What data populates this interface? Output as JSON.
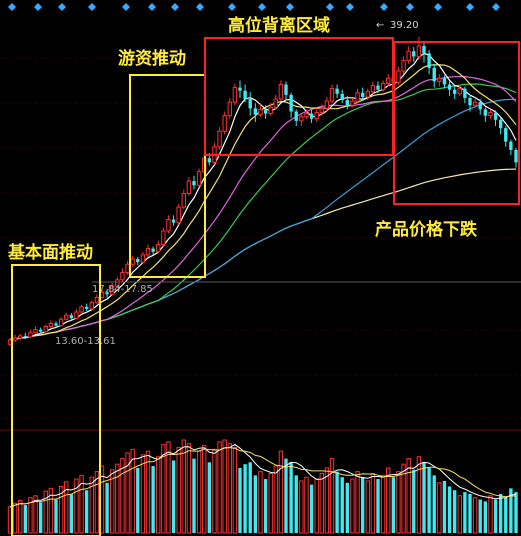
{
  "chart_data": {
    "type": "candlestick",
    "annotations": {
      "fundamental_push": "基本面推动",
      "hot_money_push": "游资推动",
      "high_divergence_zone": "高位背离区域",
      "product_price_drop": "产品价格下跌"
    },
    "price_labels": {
      "peak": "39.20",
      "level_upper": "17.84-17.85",
      "level_lower": "13.60-13.61"
    },
    "price_range": [
      5,
      41
    ],
    "colors": {
      "up": "#ff3030",
      "down": "#40e8f0",
      "ma5": "#ffffff",
      "ma10": "#f2e26a",
      "ma20": "#e066e0",
      "ma30": "#33cc55",
      "ma60": "#3aa0dc",
      "ma120": "#f5e8b0",
      "highlight_yellow": "#ffeb3b",
      "highlight_red": "#ff2020"
    },
    "candles": [
      [
        9.6,
        10.0,
        9.4,
        10.2
      ],
      [
        10.0,
        10.2,
        9.8,
        10.5
      ],
      [
        10.2,
        10.4,
        10.0,
        10.6
      ],
      [
        10.4,
        10.3,
        10.1,
        10.7
      ],
      [
        10.3,
        10.7,
        10.2,
        11.0
      ],
      [
        10.7,
        11.0,
        10.6,
        11.3
      ],
      [
        11.0,
        10.8,
        10.6,
        11.2
      ],
      [
        10.8,
        11.3,
        10.7,
        11.5
      ],
      [
        11.3,
        11.6,
        11.1,
        11.9
      ],
      [
        11.6,
        11.4,
        11.2,
        11.8
      ],
      [
        11.4,
        12.0,
        11.3,
        12.2
      ],
      [
        12.0,
        12.4,
        11.9,
        12.6
      ],
      [
        12.4,
        12.1,
        11.9,
        12.6
      ],
      [
        12.1,
        12.7,
        12.0,
        13.0
      ],
      [
        12.7,
        13.2,
        12.6,
        13.4
      ],
      [
        13.2,
        13.0,
        12.8,
        13.5
      ],
      [
        13.0,
        13.6,
        12.9,
        13.8
      ],
      [
        13.6,
        14.1,
        13.5,
        14.4
      ],
      [
        14.1,
        14.6,
        14.0,
        14.9
      ],
      [
        14.6,
        14.4,
        14.1,
        14.9
      ],
      [
        14.4,
        15.2,
        14.3,
        15.5
      ],
      [
        15.2,
        15.8,
        15.0,
        16.1
      ],
      [
        15.8,
        16.5,
        15.6,
        16.9
      ],
      [
        16.5,
        17.3,
        16.3,
        17.6
      ],
      [
        17.3,
        17.8,
        17.0,
        18.1
      ],
      [
        17.8,
        17.5,
        17.2,
        18.0
      ],
      [
        17.5,
        18.2,
        17.4,
        18.5
      ],
      [
        18.2,
        18.8,
        18.0,
        19.2
      ],
      [
        18.8,
        18.5,
        18.2,
        19.0
      ],
      [
        18.5,
        19.2,
        18.4,
        19.6
      ],
      [
        19.2,
        20.5,
        19.0,
        20.8
      ],
      [
        20.5,
        21.6,
        20.3,
        22.0
      ],
      [
        21.6,
        21.3,
        21.0,
        22.0
      ],
      [
        21.3,
        22.8,
        21.1,
        23.1
      ],
      [
        22.8,
        24.1,
        22.6,
        24.5
      ],
      [
        24.1,
        25.3,
        23.9,
        25.7
      ],
      [
        25.3,
        24.9,
        24.5,
        25.8
      ],
      [
        24.9,
        26.2,
        24.7,
        26.5
      ],
      [
        26.2,
        27.5,
        26.0,
        27.9
      ],
      [
        27.5,
        27.1,
        26.8,
        28.0
      ],
      [
        27.1,
        28.6,
        26.9,
        29.0
      ],
      [
        28.6,
        30.1,
        28.3,
        30.5
      ],
      [
        30.1,
        31.6,
        29.8,
        32.0
      ],
      [
        31.6,
        32.9,
        31.3,
        33.3
      ],
      [
        32.9,
        34.3,
        32.6,
        34.7
      ],
      [
        34.3,
        34.0,
        33.3,
        35.0
      ],
      [
        34.0,
        33.2,
        32.9,
        34.6
      ],
      [
        33.2,
        32.3,
        31.6,
        33.9
      ],
      [
        32.3,
        31.7,
        31.0,
        32.8
      ],
      [
        31.7,
        32.2,
        31.5,
        32.7
      ],
      [
        32.2,
        31.8,
        31.3,
        32.6
      ],
      [
        31.8,
        32.4,
        31.6,
        32.8
      ],
      [
        32.4,
        33.2,
        32.2,
        33.6
      ],
      [
        33.2,
        34.6,
        33.0,
        35.0
      ],
      [
        34.6,
        33.6,
        33.1,
        34.9
      ],
      [
        33.6,
        32.0,
        31.4,
        33.8
      ],
      [
        32.0,
        31.1,
        30.6,
        32.2
      ],
      [
        31.1,
        31.5,
        30.6,
        31.8
      ],
      [
        31.5,
        31.8,
        31.3,
        32.2
      ],
      [
        31.8,
        31.3,
        30.9,
        32.2
      ],
      [
        31.3,
        31.9,
        31.0,
        32.4
      ],
      [
        31.9,
        32.3,
        31.6,
        32.7
      ],
      [
        32.3,
        33.0,
        32.0,
        33.4
      ],
      [
        33.0,
        34.2,
        32.8,
        34.6
      ],
      [
        34.2,
        33.7,
        33.3,
        34.6
      ],
      [
        33.7,
        33.1,
        32.8,
        34.1
      ],
      [
        33.1,
        32.6,
        32.2,
        33.5
      ],
      [
        32.6,
        33.0,
        32.4,
        33.3
      ],
      [
        33.0,
        33.8,
        32.8,
        34.2
      ],
      [
        33.8,
        33.4,
        33.0,
        34.3
      ],
      [
        33.4,
        33.9,
        33.1,
        34.2
      ],
      [
        33.9,
        34.5,
        33.7,
        34.9
      ],
      [
        34.5,
        34.1,
        33.8,
        34.9
      ],
      [
        34.1,
        34.7,
        33.9,
        35.0
      ],
      [
        34.7,
        35.2,
        34.4,
        35.6
      ],
      [
        35.2,
        34.8,
        34.4,
        35.6
      ],
      [
        34.8,
        35.9,
        34.6,
        36.3
      ],
      [
        35.9,
        36.9,
        35.6,
        37.3
      ],
      [
        36.9,
        37.8,
        36.6,
        38.3
      ],
      [
        37.8,
        37.3,
        36.8,
        38.2
      ],
      [
        37.3,
        38.3,
        37.0,
        39.2
      ],
      [
        38.3,
        37.6,
        36.7,
        38.7
      ],
      [
        37.6,
        36.2,
        35.6,
        37.9
      ],
      [
        36.2,
        34.9,
        34.3,
        36.6
      ],
      [
        34.9,
        35.2,
        34.4,
        35.6
      ],
      [
        35.2,
        34.6,
        34.2,
        35.5
      ],
      [
        34.6,
        34.1,
        33.5,
        34.9
      ],
      [
        34.1,
        33.7,
        33.2,
        34.4
      ],
      [
        33.7,
        34.2,
        33.5,
        34.6
      ],
      [
        34.2,
        33.3,
        32.8,
        34.4
      ],
      [
        33.3,
        32.6,
        32.0,
        33.6
      ],
      [
        32.6,
        32.9,
        32.3,
        33.2
      ],
      [
        32.9,
        32.2,
        31.7,
        33.2
      ],
      [
        32.2,
        31.6,
        31.0,
        32.4
      ],
      [
        31.6,
        31.9,
        31.3,
        32.2
      ],
      [
        31.9,
        31.2,
        30.6,
        32.1
      ],
      [
        31.2,
        30.4,
        29.8,
        31.4
      ],
      [
        30.4,
        29.1,
        28.6,
        30.6
      ],
      [
        29.1,
        28.3,
        27.8,
        29.3
      ],
      [
        28.3,
        27.1,
        26.6,
        28.5
      ]
    ],
    "volume": [
      28,
      32,
      35,
      30,
      38,
      40,
      33,
      45,
      48,
      36,
      50,
      55,
      42,
      58,
      62,
      46,
      60,
      66,
      72,
      54,
      68,
      74,
      80,
      86,
      90,
      70,
      84,
      88,
      72,
      82,
      95,
      98,
      78,
      92,
      100,
      96,
      80,
      88,
      94,
      76,
      90,
      98,
      100,
      96,
      92,
      70,
      74,
      76,
      62,
      66,
      58,
      64,
      72,
      88,
      80,
      76,
      62,
      56,
      60,
      52,
      58,
      64,
      70,
      80,
      66,
      60,
      54,
      58,
      66,
      60,
      56,
      64,
      58,
      62,
      70,
      60,
      66,
      74,
      80,
      68,
      82,
      76,
      70,
      62,
      54,
      56,
      50,
      46,
      40,
      44,
      42,
      38,
      36,
      34,
      40,
      36,
      42,
      38,
      48,
      44
    ]
  }
}
